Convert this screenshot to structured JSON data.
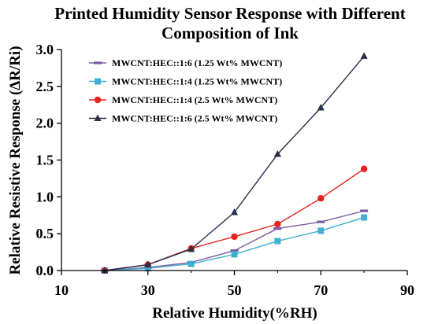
{
  "chart_data": {
    "type": "line",
    "title": "Printed Humidity Sensor Response with Different Composition of Ink",
    "title_lines": [
      "Printed Humidity Sensor Response with Different",
      "Composition of Ink"
    ],
    "xlabel": "Relative Humidity(%RH)",
    "ylabel": "Relative Resistive Response (ΔR/Ri)",
    "xlim": [
      10,
      90
    ],
    "ylim": [
      0,
      3.0
    ],
    "x_ticks": [
      10,
      30,
      50,
      70,
      90
    ],
    "x_tick_labels": [
      "10",
      "30",
      "50",
      "70",
      "90"
    ],
    "y_ticks": [
      0,
      0.5,
      1.0,
      1.5,
      2.0,
      2.5,
      3.0
    ],
    "y_tick_labels": [
      "0.0",
      "0.5",
      "1.0",
      "1.5",
      "2.0",
      "2.5",
      "3.0"
    ],
    "grid": false,
    "legend_position": "top-left",
    "x": [
      20,
      30,
      40,
      50,
      60,
      70,
      80
    ],
    "series": [
      {
        "name": "MWCNT:HEC::1:6 (1.25 Wt% MWCNT)",
        "values": [
          0.0,
          0.04,
          0.11,
          0.27,
          0.57,
          0.66,
          0.81
        ],
        "color": "#7a5aa0",
        "marker": "dash"
      },
      {
        "name": "MWCNT:HEC::1:4 (1.25 Wt% MWCNT)",
        "values": [
          0.0,
          0.03,
          0.09,
          0.22,
          0.4,
          0.54,
          0.72
        ],
        "color": "#3fb0cf",
        "marker": "square"
      },
      {
        "name": "MWCNT:HEC::1:4 (2.5 Wt% MWCNT)",
        "values": [
          0.0,
          0.08,
          0.3,
          0.46,
          0.63,
          0.98,
          1.38
        ],
        "color": "#e8231f",
        "marker": "circle"
      },
      {
        "name": "MWCNT:HEC::1:6 (2.5 Wt% MWCNT)",
        "values": [
          0.0,
          0.08,
          0.29,
          0.79,
          1.58,
          2.21,
          2.91
        ],
        "color": "#27304a",
        "marker": "triangle"
      }
    ]
  }
}
